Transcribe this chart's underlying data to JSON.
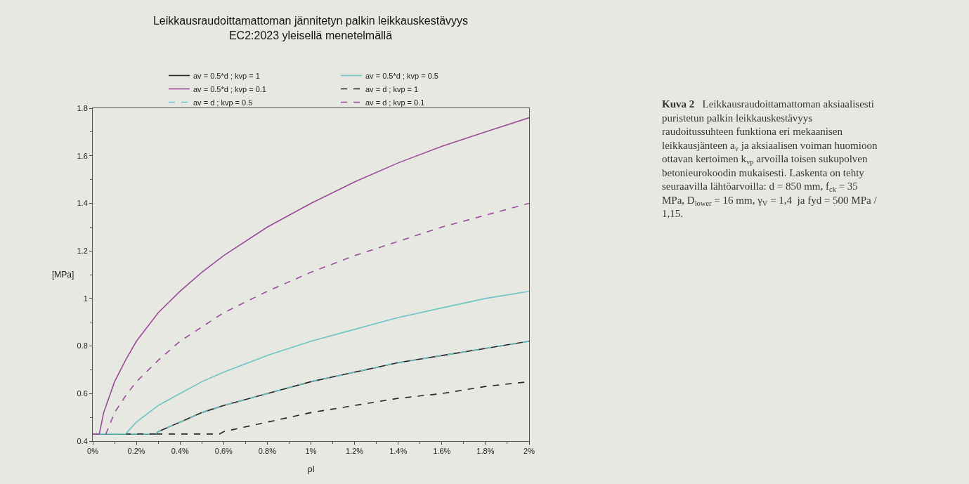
{
  "chart_data": {
    "type": "line",
    "title": "Leikkausraudoittamattoman jännitetyn palkin leikkauskestävyys\nEC2:2023 yleisellä menetelmällä",
    "xlabel": "ρl",
    "ylabel": "[MPa]",
    "xlim": [
      0,
      2
    ],
    "ylim": [
      0.4,
      1.8
    ],
    "xticks": [
      {
        "value": 0,
        "label": "0%"
      },
      {
        "value": 0.2,
        "label": "0.2%"
      },
      {
        "value": 0.4,
        "label": "0.4%"
      },
      {
        "value": 0.6,
        "label": "0.6%"
      },
      {
        "value": 0.8,
        "label": "0.8%"
      },
      {
        "value": 1,
        "label": "1%"
      },
      {
        "value": 1.2,
        "label": "1.2%"
      },
      {
        "value": 1.4,
        "label": "1.4%"
      },
      {
        "value": 1.6,
        "label": "1.6%"
      },
      {
        "value": 1.8,
        "label": "1.8%"
      },
      {
        "value": 2,
        "label": "2%"
      }
    ],
    "yticks": [
      0.4,
      0.6,
      0.8,
      {
        "value": 1,
        "label": "1"
      },
      1.2,
      1.4,
      1.6,
      1.8
    ],
    "grid": false,
    "legend": "top",
    "marker": "none",
    "series": [
      {
        "name": "av = 0.5*d ; kvp = 1",
        "color": "#222222",
        "line_style": "solid",
        "x": [
          0,
          0.29,
          0.3,
          0.4,
          0.5,
          0.6,
          0.8,
          1,
          1.2,
          1.4,
          1.6,
          1.8,
          2
        ],
        "values": [
          0.43,
          0.43,
          0.44,
          0.48,
          0.52,
          0.55,
          0.6,
          0.65,
          0.69,
          0.73,
          0.76,
          0.79,
          0.82
        ]
      },
      {
        "name": "av = 0.5*d ; kvp = 0.5",
        "color": "#6cc5c5",
        "line_style": "solid",
        "x": [
          0,
          0.15,
          0.2,
          0.3,
          0.4,
          0.5,
          0.6,
          0.8,
          1,
          1.2,
          1.4,
          1.6,
          1.8,
          2
        ],
        "values": [
          0.43,
          0.43,
          0.48,
          0.55,
          0.6,
          0.65,
          0.69,
          0.76,
          0.82,
          0.87,
          0.92,
          0.96,
          1.0,
          1.03
        ]
      },
      {
        "name": "av = 0.5*d ; kvp = 0.1",
        "color": "#9b4a9b",
        "line_style": "solid",
        "x": [
          0,
          0.03,
          0.05,
          0.1,
          0.15,
          0.2,
          0.3,
          0.4,
          0.5,
          0.6,
          0.8,
          1,
          1.2,
          1.4,
          1.6,
          1.8,
          2
        ],
        "values": [
          0.43,
          0.43,
          0.52,
          0.65,
          0.74,
          0.82,
          0.94,
          1.03,
          1.11,
          1.18,
          1.3,
          1.4,
          1.49,
          1.57,
          1.64,
          1.7,
          1.76
        ]
      },
      {
        "name": "av = d ; kvp = 1",
        "color": "#222222",
        "line_style": "dashed",
        "x": [
          0,
          0.58,
          0.6,
          0.8,
          1,
          1.2,
          1.4,
          1.6,
          1.8,
          2
        ],
        "values": [
          0.43,
          0.43,
          0.44,
          0.48,
          0.52,
          0.55,
          0.58,
          0.6,
          0.63,
          0.65
        ]
      },
      {
        "name": "av = d ; kvp = 0.5",
        "color": "#6cc5c5",
        "line_style": "dashed",
        "x": [
          0,
          0.29,
          0.3,
          0.4,
          0.5,
          0.6,
          0.8,
          1,
          1.2,
          1.4,
          1.6,
          1.8,
          2
        ],
        "values": [
          0.43,
          0.43,
          0.44,
          0.48,
          0.52,
          0.55,
          0.6,
          0.65,
          0.69,
          0.73,
          0.76,
          0.79,
          0.82
        ]
      },
      {
        "name": "av = d ; kvp = 0.1",
        "color": "#9b4a9b",
        "line_style": "dashed",
        "x": [
          0,
          0.06,
          0.1,
          0.15,
          0.2,
          0.3,
          0.4,
          0.5,
          0.6,
          0.8,
          1,
          1.2,
          1.4,
          1.6,
          1.8,
          2
        ],
        "values": [
          0.43,
          0.43,
          0.52,
          0.59,
          0.65,
          0.74,
          0.82,
          0.88,
          0.94,
          1.03,
          1.11,
          1.18,
          1.24,
          1.3,
          1.35,
          1.4
        ]
      }
    ],
    "annotations": [
      "Kuva 2",
      "Leikkausraudoittamattoman aksiaalisesti puristetun palkin leikkauskestävyys raudoitussuhteen funktiona eri mekaanisen leikkausjänteen a$_{v}$ ja aksiaalisen voiman huomioon ottavan kertoimen k$_{vp}$ arvoilla toisen sukupolven betonieurokoodin mukaisesti. Laskenta on tehty seuraavilla lähtöarvoilla: d = 850 mm, f$_{ck}$ = 35 MPa, D$_{lower}$ = 16 mm, γ$_{V}$ = 1,4  ja fyd = 500 MPa / 1,15."
    ]
  }
}
